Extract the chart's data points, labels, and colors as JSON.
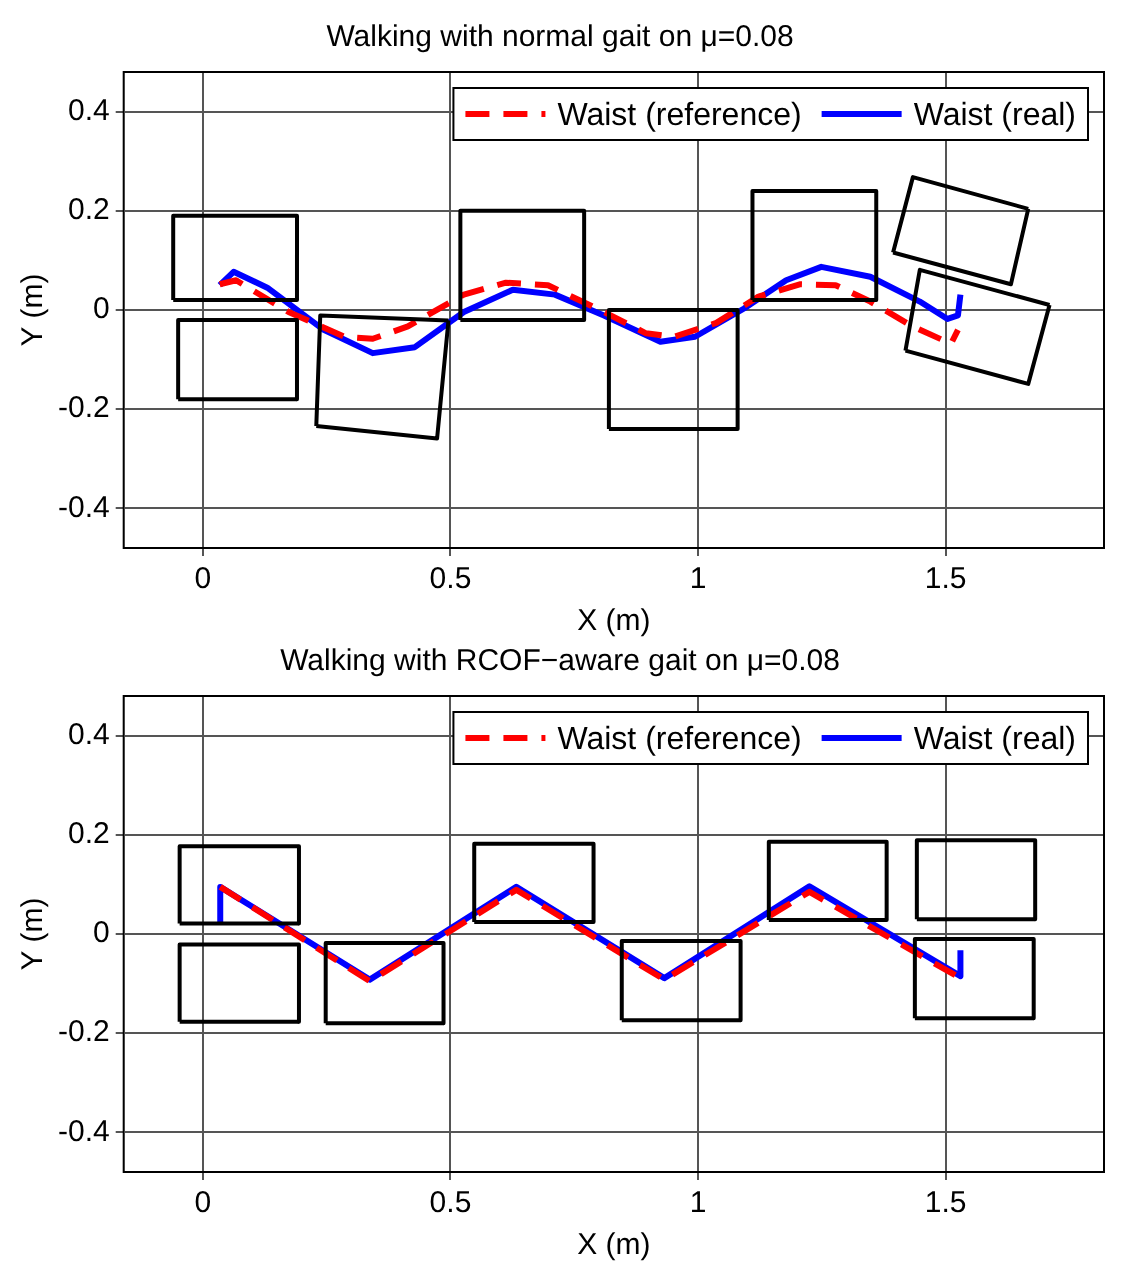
{
  "chart_data": [
    {
      "type": "line",
      "title": "Walking with normal gait on μ=0.08",
      "xlabel": "X (m)",
      "ylabel": "Y (m)",
      "xlim": [
        -0.16,
        1.82
      ],
      "ylim": [
        -0.48,
        0.48
      ],
      "xticks": [
        0,
        0.5,
        1,
        1.5
      ],
      "yticks": [
        -0.4,
        -0.2,
        0,
        0.2,
        0.4
      ],
      "grid": true,
      "legend": "top right",
      "marker": "none",
      "series": [
        {
          "color": "#000000",
          "line_style": "solid",
          "x": [
            -0.06,
            -0.06,
            0.19,
            0.19
          ],
          "values": [
            0.02,
            0.19,
            0.19,
            0.02
          ]
        },
        {
          "color": "#000000",
          "line_style": "solid",
          "x": [
            -0.06,
            0.19
          ],
          "values": [
            0.02,
            0.02
          ]
        },
        {
          "color": "#000000",
          "line_style": "solid",
          "x": [
            -0.05,
            -0.05,
            0.19,
            0.19
          ],
          "values": [
            -0.18,
            -0.02,
            -0.02,
            -0.18
          ]
        },
        {
          "color": "#000000",
          "line_style": "solid",
          "x": [
            -0.05,
            0.19
          ],
          "values": [
            -0.18,
            -0.18
          ]
        },
        {
          "color": "#000000",
          "line_style": "solid",
          "x": [
            0.229,
            0.237,
            0.496
          ],
          "values": [
            -0.234,
            -0.011,
            -0.021
          ]
        },
        {
          "color": "#000000",
          "line_style": "solid",
          "x": [
            0.229,
            0.473,
            0.496
          ],
          "values": [
            -0.234,
            -0.259,
            -0.021
          ]
        },
        {
          "color": "#000000",
          "line_style": "solid",
          "x": [
            0.52,
            0.52,
            0.77,
            0.77
          ],
          "values": [
            -0.02,
            0.2,
            0.2,
            -0.02
          ]
        },
        {
          "color": "#000000",
          "line_style": "solid",
          "x": [
            0.52,
            0.77
          ],
          "values": [
            -0.02,
            -0.02
          ]
        },
        {
          "color": "#000000",
          "line_style": "solid",
          "x": [
            0.82,
            0.82,
            1.08,
            1.08
          ],
          "values": [
            -0.24,
            0.0,
            0.0,
            -0.24
          ]
        },
        {
          "color": "#000000",
          "line_style": "solid",
          "x": [
            0.82,
            1.08
          ],
          "values": [
            -0.24,
            -0.24
          ]
        },
        {
          "color": "#000000",
          "line_style": "solid",
          "x": [
            1.11,
            1.11,
            1.36,
            1.36
          ],
          "values": [
            0.02,
            0.24,
            0.24,
            0.02
          ]
        },
        {
          "color": "#000000",
          "line_style": "solid",
          "x": [
            1.11,
            1.36
          ],
          "values": [
            0.02,
            0.02
          ]
        },
        {
          "color": "#000000",
          "line_style": "solid",
          "x": [
            1.394,
            1.434,
            1.667
          ],
          "values": [
            0.116,
            0.268,
            0.204
          ]
        },
        {
          "color": "#000000",
          "line_style": "solid",
          "x": [
            1.394,
            1.632,
            1.667
          ],
          "values": [
            0.116,
            0.052,
            0.204
          ]
        },
        {
          "color": "#000000",
          "line_style": "solid",
          "x": [
            1.419,
            1.448,
            1.71
          ],
          "values": [
            -0.082,
            0.081,
            0.01
          ]
        },
        {
          "color": "#000000",
          "line_style": "solid",
          "x": [
            1.419,
            1.667,
            1.71
          ],
          "values": [
            -0.082,
            -0.149,
            0.01
          ]
        },
        {
          "name": "Waist (reference)",
          "color": "#ff0000",
          "line_style": "dashed",
          "x": [
            0.034,
            0.067,
            0.173,
            0.286,
            0.343,
            0.414,
            0.527,
            0.612,
            0.697,
            0.81,
            0.895,
            0.952,
            1.037,
            1.122,
            1.207,
            1.278,
            1.348,
            1.433,
            1.511,
            1.525
          ],
          "values": [
            0.052,
            0.06,
            -0.004,
            -0.054,
            -0.058,
            -0.033,
            0.031,
            0.055,
            0.05,
            -0.004,
            -0.047,
            -0.054,
            -0.026,
            0.027,
            0.052,
            0.05,
            0.017,
            -0.033,
            -0.068,
            -0.04
          ]
        },
        {
          "name": "Waist (real)",
          "color": "#0000ff",
          "line_style": "solid",
          "x": [
            0.034,
            0.062,
            0.13,
            0.244,
            0.343,
            0.428,
            0.527,
            0.626,
            0.711,
            0.81,
            0.924,
            0.994,
            1.093,
            1.178,
            1.249,
            1.348,
            1.448,
            1.504,
            1.525,
            1.53
          ],
          "values": [
            0.05,
            0.077,
            0.045,
            -0.04,
            -0.087,
            -0.075,
            -0.004,
            0.041,
            0.031,
            -0.011,
            -0.064,
            -0.054,
            0.003,
            0.06,
            0.087,
            0.067,
            0.017,
            -0.018,
            -0.011,
            0.031
          ]
        }
      ]
    },
    {
      "type": "line",
      "title": "Walking with RCOF−aware gait on μ=0.08",
      "xlabel": "X (m)",
      "ylabel": "Y (m)",
      "xlim": [
        -0.16,
        1.82
      ],
      "ylim": [
        -0.48,
        0.48
      ],
      "xticks": [
        0,
        0.5,
        1,
        1.5
      ],
      "yticks": [
        -0.4,
        -0.2,
        0,
        0.2,
        0.4
      ],
      "grid": true,
      "legend": "top right",
      "marker": "none",
      "series": [
        {
          "color": "#000000",
          "line_style": "solid",
          "x": [
            -0.047,
            -0.047,
            0.194,
            0.194
          ],
          "values": [
            0.021,
            0.177,
            0.177,
            0.021
          ]
        },
        {
          "color": "#000000",
          "line_style": "solid",
          "x": [
            -0.047,
            0.194
          ],
          "values": [
            0.021,
            0.021
          ]
        },
        {
          "color": "#000000",
          "line_style": "solid",
          "x": [
            -0.047,
            -0.047,
            0.194,
            0.194
          ],
          "values": [
            -0.177,
            -0.021,
            -0.021,
            -0.177
          ]
        },
        {
          "color": "#000000",
          "line_style": "solid",
          "x": [
            -0.047,
            0.194
          ],
          "values": [
            -0.177,
            -0.177
          ]
        },
        {
          "color": "#000000",
          "line_style": "solid",
          "x": [
            0.248,
            0.248,
            0.486,
            0.486
          ],
          "values": [
            -0.18,
            -0.018,
            -0.018,
            -0.18
          ]
        },
        {
          "color": "#000000",
          "line_style": "solid",
          "x": [
            0.248,
            0.486
          ],
          "values": [
            -0.18,
            -0.18
          ]
        },
        {
          "color": "#000000",
          "line_style": "solid",
          "x": [
            0.548,
            0.548,
            0.789,
            0.789
          ],
          "values": [
            0.024,
            0.182,
            0.182,
            0.024
          ]
        },
        {
          "color": "#000000",
          "line_style": "solid",
          "x": [
            0.548,
            0.789
          ],
          "values": [
            0.024,
            0.024
          ]
        },
        {
          "color": "#000000",
          "line_style": "solid",
          "x": [
            0.846,
            0.846,
            1.086,
            1.086
          ],
          "values": [
            -0.174,
            -0.014,
            -0.014,
            -0.174
          ]
        },
        {
          "color": "#000000",
          "line_style": "solid",
          "x": [
            0.846,
            1.086
          ],
          "values": [
            -0.174,
            -0.174
          ]
        },
        {
          "color": "#000000",
          "line_style": "solid",
          "x": [
            1.143,
            1.143,
            1.381,
            1.381
          ],
          "values": [
            0.028,
            0.186,
            0.186,
            0.028
          ]
        },
        {
          "color": "#000000",
          "line_style": "solid",
          "x": [
            1.143,
            1.381
          ],
          "values": [
            0.028,
            0.028
          ]
        },
        {
          "color": "#000000",
          "line_style": "solid",
          "x": [
            1.442,
            1.442,
            1.681,
            1.681
          ],
          "values": [
            0.03,
            0.189,
            0.189,
            0.03
          ]
        },
        {
          "color": "#000000",
          "line_style": "solid",
          "x": [
            1.442,
            1.681
          ],
          "values": [
            0.03,
            0.03
          ]
        },
        {
          "color": "#000000",
          "line_style": "solid",
          "x": [
            1.438,
            1.438,
            1.678,
            1.678
          ],
          "values": [
            -0.17,
            -0.01,
            -0.01,
            -0.17
          ]
        },
        {
          "color": "#000000",
          "line_style": "solid",
          "x": [
            1.438,
            1.678
          ],
          "values": [
            -0.17,
            -0.17
          ]
        },
        {
          "name": "Waist (reference)",
          "color": "#ff0000",
          "line_style": "dashed",
          "x": [
            0.035,
            0.337,
            0.633,
            0.932,
            1.225,
            1.53
          ],
          "values": [
            0.095,
            -0.095,
            0.089,
            -0.092,
            0.085,
            -0.089
          ]
        },
        {
          "name": "Waist (real)",
          "color": "#0000ff",
          "line_style": "solid",
          "x": [
            0.035,
            0.035,
            0.337,
            0.633,
            0.932,
            1.225,
            1.53,
            1.53
          ],
          "values": [
            0.024,
            0.095,
            -0.092,
            0.095,
            -0.089,
            0.096,
            -0.085,
            -0.033
          ]
        }
      ]
    }
  ]
}
